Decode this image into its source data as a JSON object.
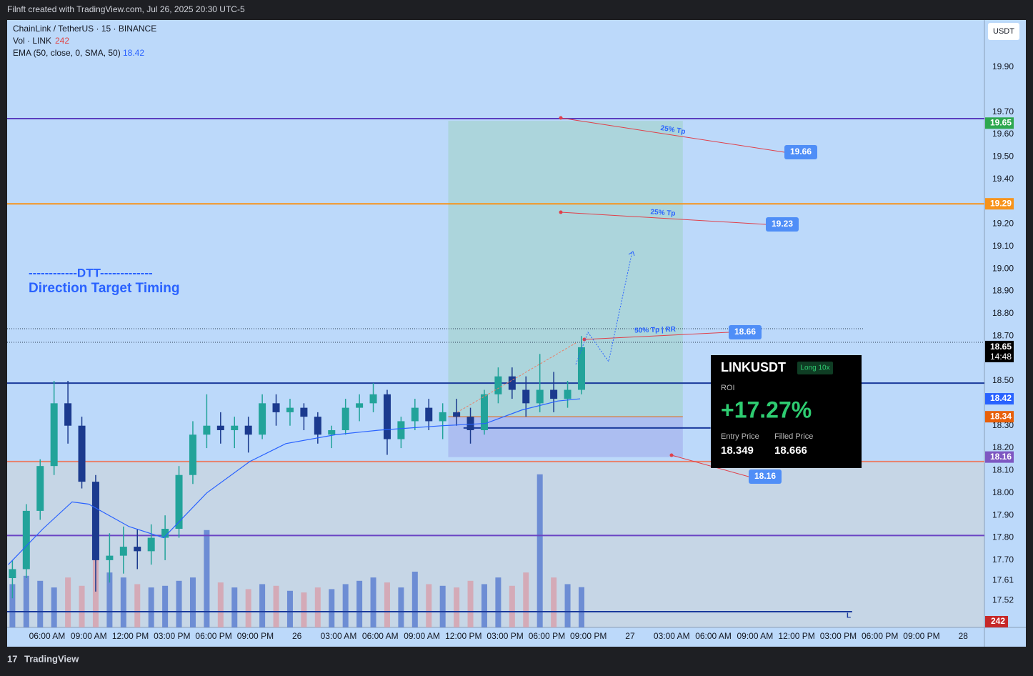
{
  "header": {
    "title": "Filnft created with TradingView.com, Jul 26, 2025 20:30 UTC-5",
    "footer": "TradingView"
  },
  "chart_data": {
    "type": "candlestick",
    "symbol": "ChainLink / TetherUS · 15 · BINANCE",
    "volume_legend": "Vol · LINK",
    "volume_last": 242,
    "ema_legend": "EMA (50, close, 0, SMA, 50)",
    "ema_last": 18.42,
    "currency": "USDT",
    "up_color": "#22a39a",
    "down_color": "#1b3a8e",
    "volume_up_color": "#5d80d0",
    "volume_down_color": "#d6a2ae",
    "ema_color": "#2962ff",
    "x": [
      3.5,
      4.5,
      5.5,
      6.5,
      7.5,
      8.5,
      9.5,
      10.5,
      11.5,
      12.5,
      13.5,
      14.5,
      15.5,
      16.5,
      17.5,
      18.5,
      19.5,
      20.5,
      21.5,
      22.5,
      23.5,
      24.5,
      25.5,
      26.5,
      27.5,
      28.5,
      29.5,
      30.5,
      31.5,
      32.5,
      33.5,
      34.5,
      35.5,
      36.5,
      37.5,
      38.5,
      39.5,
      40.5,
      41.5,
      42.5,
      43.5,
      44.5
    ],
    "open": [
      17.62,
      17.66,
      17.92,
      18.12,
      18.4,
      18.3,
      18.05,
      17.7,
      17.72,
      17.76,
      17.74,
      17.8,
      17.84,
      18.08,
      18.26,
      18.3,
      18.28,
      18.3,
      18.26,
      18.4,
      18.36,
      18.38,
      18.34,
      18.26,
      18.28,
      18.38,
      18.4,
      18.44,
      18.24,
      18.32,
      18.38,
      18.32,
      18.36,
      18.34,
      18.28,
      18.44,
      18.52,
      18.46,
      18.4,
      18.46,
      18.42,
      18.46
    ],
    "high": [
      17.7,
      17.95,
      18.15,
      18.5,
      18.5,
      18.34,
      18.08,
      17.82,
      17.85,
      17.84,
      17.86,
      17.9,
      18.12,
      18.32,
      18.44,
      18.36,
      18.34,
      18.34,
      18.44,
      18.44,
      18.42,
      18.4,
      18.36,
      18.3,
      18.42,
      18.44,
      18.49,
      18.46,
      18.34,
      18.42,
      18.42,
      18.4,
      18.42,
      18.38,
      18.46,
      18.56,
      18.56,
      18.52,
      18.62,
      18.54,
      18.5,
      18.7
    ],
    "low": [
      17.53,
      17.62,
      17.88,
      18.08,
      18.22,
      18.02,
      17.56,
      17.6,
      17.64,
      17.66,
      17.68,
      17.7,
      17.8,
      18.04,
      18.2,
      18.22,
      18.2,
      18.18,
      18.24,
      18.3,
      18.3,
      18.28,
      18.22,
      18.2,
      18.26,
      18.32,
      18.36,
      18.17,
      18.2,
      18.28,
      18.28,
      18.24,
      18.3,
      18.22,
      18.26,
      18.4,
      18.42,
      18.34,
      18.36,
      18.36,
      18.38,
      18.44
    ],
    "close": [
      17.66,
      17.92,
      18.12,
      18.4,
      18.3,
      18.05,
      17.7,
      17.72,
      17.76,
      17.74,
      17.8,
      17.84,
      18.08,
      18.26,
      18.3,
      18.28,
      18.3,
      18.26,
      18.4,
      18.36,
      18.38,
      18.34,
      18.26,
      18.28,
      18.38,
      18.4,
      18.44,
      18.24,
      18.32,
      18.38,
      18.32,
      18.36,
      18.34,
      18.28,
      18.44,
      18.52,
      18.46,
      18.4,
      18.46,
      18.42,
      18.46,
      18.65
    ],
    "volume": [
      260,
      310,
      280,
      240,
      300,
      250,
      420,
      330,
      300,
      260,
      240,
      250,
      280,
      300,
      585,
      270,
      240,
      230,
      260,
      250,
      220,
      210,
      240,
      230,
      260,
      280,
      300,
      270,
      240,
      335,
      260,
      250,
      240,
      280,
      260,
      300,
      250,
      330,
      920,
      300,
      260,
      242
    ],
    "ema": {
      "x": [
        3.2,
        5.7,
        7.8,
        9.0,
        11.9,
        14.4,
        17.5,
        20.6,
        23.2,
        26.8,
        29.9,
        34.5,
        37.6,
        40.2,
        42.8,
        44.4
      ],
      "values": [
        17.68,
        17.84,
        17.96,
        17.95,
        17.85,
        17.8,
        18.0,
        18.14,
        18.22,
        18.26,
        18.28,
        18.3,
        18.31,
        18.37,
        18.41,
        18.42
      ]
    },
    "xlim": [
      3.12,
      73.53
    ],
    "ylim": [
      17.4,
      20.11
    ],
    "volume_ylim": [
      0,
      3650
    ],
    "grid": false,
    "xticks": [
      {
        "value": 6,
        "label": "06:00 AM"
      },
      {
        "value": 9,
        "label": "09:00 AM"
      },
      {
        "value": 12,
        "label": "12:00 PM"
      },
      {
        "value": 15,
        "label": "03:00 PM"
      },
      {
        "value": 18,
        "label": "06:00 PM"
      },
      {
        "value": 21,
        "label": "09:00 PM"
      },
      {
        "value": 24,
        "label": "26"
      },
      {
        "value": 27,
        "label": "03:00 AM"
      },
      {
        "value": 30,
        "label": "06:00 AM"
      },
      {
        "value": 33,
        "label": "09:00 AM"
      },
      {
        "value": 36,
        "label": "12:00 PM"
      },
      {
        "value": 39,
        "label": "03:00 PM"
      },
      {
        "value": 42,
        "label": "06:00 PM"
      },
      {
        "value": 45,
        "label": "09:00 PM"
      },
      {
        "value": 48,
        "label": "27"
      },
      {
        "value": 51,
        "label": "03:00 AM"
      },
      {
        "value": 54,
        "label": "06:00 AM"
      },
      {
        "value": 57,
        "label": "09:00 AM"
      },
      {
        "value": 60,
        "label": "12:00 PM"
      },
      {
        "value": 63,
        "label": "03:00 PM"
      },
      {
        "value": 66,
        "label": "06:00 PM"
      },
      {
        "value": 69,
        "label": "09:00 PM"
      },
      {
        "value": 72,
        "label": "28"
      }
    ],
    "yticks": [
      17.52,
      17.61,
      {
        "value": 17.7,
        "label": "17.70"
      },
      {
        "value": 17.8,
        "label": "17.80"
      },
      {
        "value": 17.9,
        "label": "17.90"
      },
      {
        "value": 18.0,
        "label": "18.00"
      },
      {
        "value": 18.1,
        "label": "18.10"
      },
      {
        "value": 18.2,
        "label": "18.20"
      },
      {
        "value": 18.3,
        "label": "18.30"
      },
      {
        "value": 18.5,
        "label": "18.50"
      },
      {
        "value": 18.7,
        "label": "18.70"
      },
      {
        "value": 18.8,
        "label": "18.80"
      },
      {
        "value": 18.9,
        "label": "18.90"
      },
      {
        "value": 19.0,
        "label": "19.00"
      },
      {
        "value": 19.1,
        "label": "19.10"
      },
      {
        "value": 19.2,
        "label": "19.20"
      },
      {
        "value": 19.4,
        "label": "19.40"
      },
      {
        "value": 19.5,
        "label": "19.50"
      },
      {
        "value": 19.6,
        "label": "19.60"
      },
      {
        "value": 19.7,
        "label": "19.70"
      },
      {
        "value": 19.9,
        "label": "19.90"
      }
    ],
    "horizontal_lines": [
      {
        "value": 19.67,
        "color": "#5b3fbf"
      },
      {
        "value": 19.29,
        "color": "#f7931a"
      },
      {
        "value": 18.49,
        "color": "#1a3a9c"
      },
      {
        "value": 18.14,
        "color": "#e8806a"
      },
      {
        "value": 17.81,
        "color": "#6a44c4"
      },
      {
        "value": 18.29,
        "color": "#1a3a9c",
        "x_start": 36.0,
        "x_end": 53.8
      },
      {
        "value": 17.47,
        "color": "#1a3a9c",
        "x_start": 3.12,
        "x_end": 64.0
      }
    ],
    "badges": [
      {
        "value": 19.65,
        "color": "#2ea84f"
      },
      {
        "value": 19.29,
        "color": "#f7931a"
      },
      {
        "value": 18.42,
        "color": "#2962ff"
      },
      {
        "value": 18.34,
        "color": "#e8600a"
      },
      {
        "value": 18.16,
        "color": "#7e57c2"
      }
    ],
    "current_price": {
      "value": 18.65,
      "countdown": "14:48"
    },
    "position": {
      "entry": 18.34,
      "target": 19.66,
      "stop": 18.16,
      "x_start": 34.9,
      "x_end": 51.8
    },
    "annotations": [
      "19.66",
      "19.23",
      "18.66",
      "18.16",
      "25% Tp",
      "25% Tp",
      "50% Tp | RR",
      "L"
    ]
  },
  "branding": {
    "line1": "------------DTT-------------",
    "line2": "Direction Target Timing"
  },
  "card": {
    "symbol": "LINKUSDT",
    "badge": "Long 10x",
    "roi_label": "ROI",
    "roi": "+17.27%",
    "entry_label": "Entry Price",
    "filled_label": "Filled Price",
    "entry": "18.349",
    "filled": "18.666"
  }
}
